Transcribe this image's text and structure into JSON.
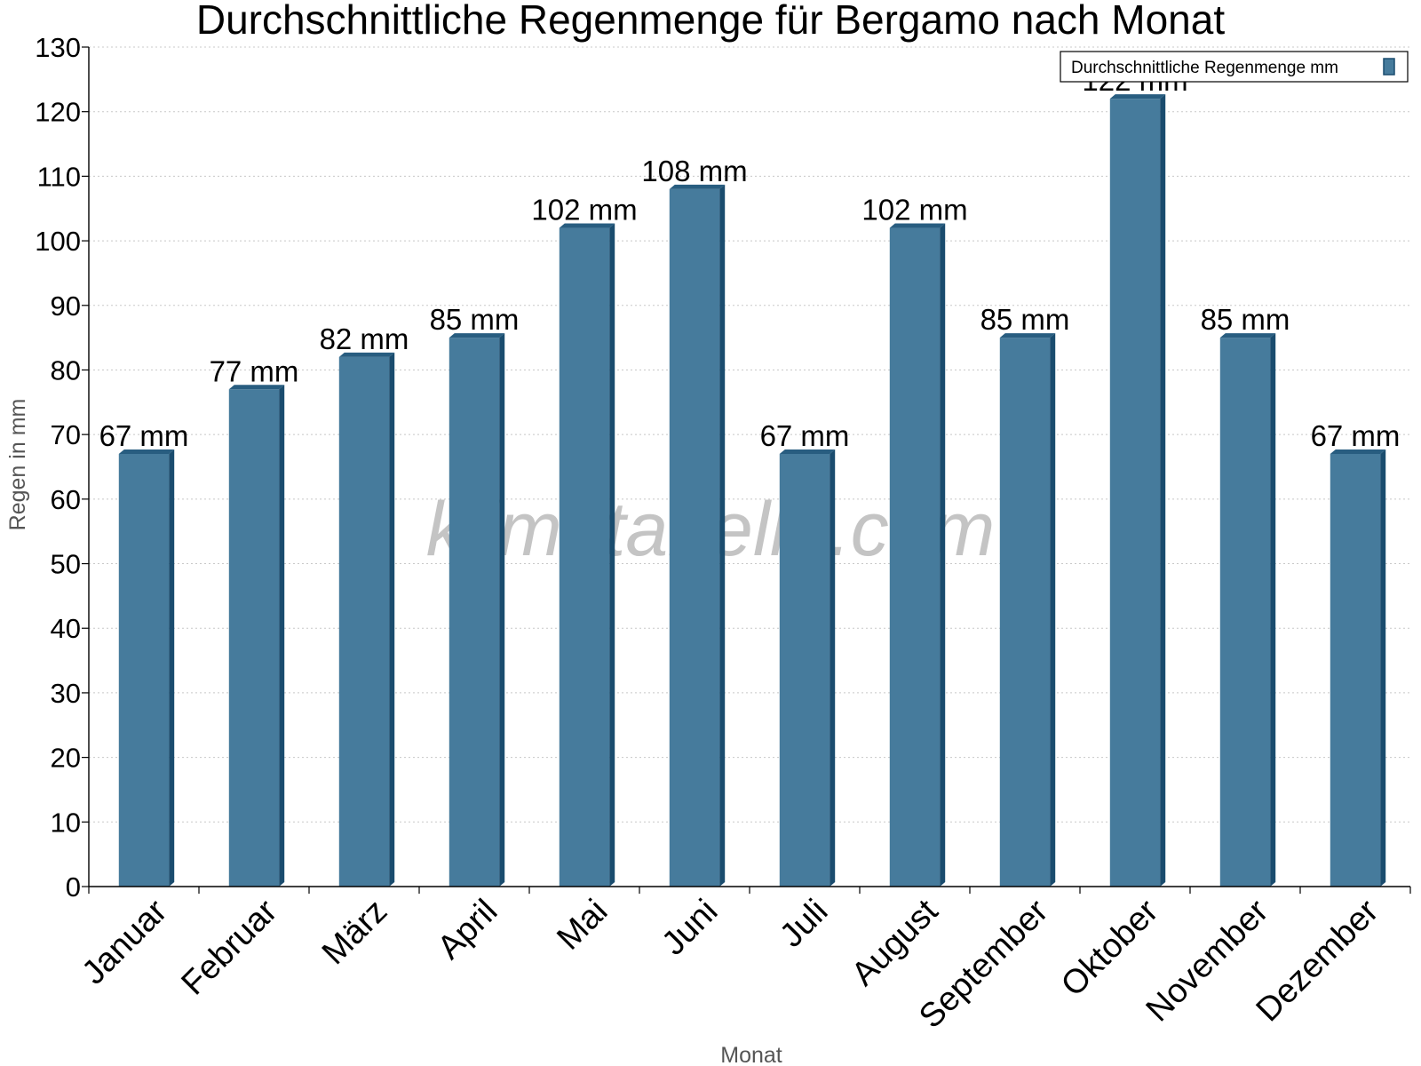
{
  "chart_data": {
    "type": "bar",
    "title": "Durchschnittliche Regenmenge für Bergamo nach Monat",
    "xlabel": "Monat",
    "ylabel": "Regen in mm",
    "categories": [
      "Januar",
      "Februar",
      "März",
      "April",
      "Mai",
      "Juni",
      "Juli",
      "August",
      "September",
      "Oktober",
      "November",
      "Dezember"
    ],
    "series": [
      {
        "name": "Durchschnittliche Regenmenge mm",
        "values": [
          67,
          77,
          82,
          85,
          102,
          108,
          67,
          102,
          85,
          122,
          85,
          67
        ],
        "labels": [
          "67 mm",
          "77 mm",
          "82 mm",
          "85 mm",
          "102 mm",
          "108 mm",
          "67 mm",
          "102 mm",
          "85 mm",
          "122 mm",
          "85 mm",
          "67 mm"
        ]
      }
    ],
    "ylim": [
      0,
      130
    ],
    "yticks": [
      0,
      10,
      20,
      30,
      40,
      50,
      60,
      70,
      80,
      90,
      100,
      110,
      120,
      130
    ],
    "grid": true,
    "legend_position": "top-right",
    "colors": {
      "bar_front": "#467b9c",
      "bar_side": "#1a4c6e",
      "bar_top": "#285d80",
      "grid": "#c8c8c8",
      "axis": "#000000"
    }
  },
  "watermark": "klimatabelle.com"
}
